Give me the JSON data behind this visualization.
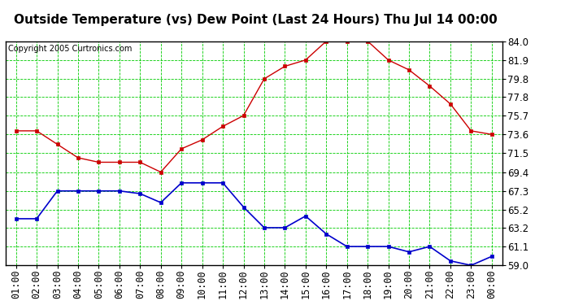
{
  "title": "Outside Temperature (vs) Dew Point (Last 24 Hours) Thu Jul 14 00:00",
  "copyright": "Copyright 2005 Curtronics.com",
  "x_labels": [
    "01:00",
    "02:00",
    "03:00",
    "04:00",
    "05:00",
    "06:00",
    "07:00",
    "08:00",
    "09:00",
    "10:00",
    "11:00",
    "12:00",
    "13:00",
    "14:00",
    "15:00",
    "16:00",
    "17:00",
    "18:00",
    "19:00",
    "20:00",
    "21:00",
    "22:00",
    "23:00",
    "00:00"
  ],
  "y_ticks": [
    59.0,
    61.1,
    63.2,
    65.2,
    67.3,
    69.4,
    71.5,
    73.6,
    75.7,
    77.8,
    79.8,
    81.9,
    84.0
  ],
  "ylim": [
    59.0,
    84.0
  ],
  "red_temp": [
    74.0,
    74.0,
    72.5,
    71.0,
    70.5,
    70.5,
    70.5,
    69.4,
    72.0,
    73.0,
    74.5,
    75.7,
    79.8,
    81.2,
    81.9,
    84.0,
    84.0,
    84.0,
    81.9,
    80.8,
    79.0,
    77.0,
    74.0,
    73.6
  ],
  "blue_dew": [
    64.2,
    64.2,
    67.3,
    67.3,
    67.3,
    67.3,
    67.0,
    66.0,
    68.2,
    68.2,
    68.2,
    65.5,
    63.2,
    63.2,
    64.5,
    62.5,
    61.1,
    61.1,
    61.1,
    60.5,
    61.1,
    59.5,
    59.0,
    60.0
  ],
  "bg_color": "#ffffff",
  "plot_bg_color": "#ffffff",
  "grid_color": "#00cc00",
  "red_color": "#cc0000",
  "blue_color": "#0000cc",
  "title_fontsize": 11,
  "copyright_fontsize": 7,
  "tick_fontsize": 8.5
}
